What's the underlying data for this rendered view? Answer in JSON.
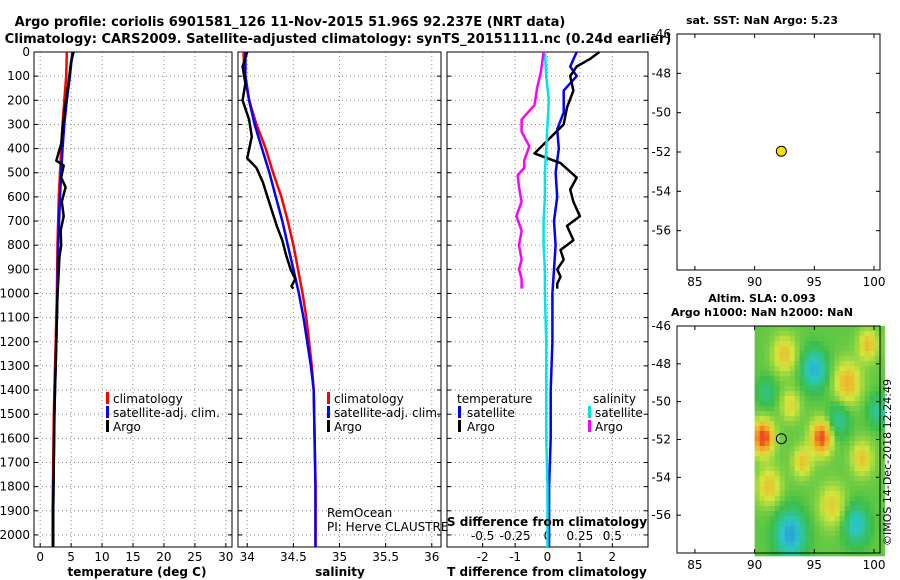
{
  "figure": {
    "title_line1": "Argo profile: coriolis 6901581_126 11-Nov-2015 51.96S 92.237E (NRT data)",
    "title_line2": "Climatology: CARS2009. Satellite-adjusted climatology: synTS_20151111.nc (0.24d earlier)",
    "side_label": "©IMOS 14-Dec-2018 12:24:49",
    "credit_line1": "RemOcean",
    "credit_line2": "PI: Herve CLAUSTRE"
  },
  "colors": {
    "climatology": "#ff0000",
    "satellite": "#0000ff",
    "argo": "#000000",
    "temp_sat_diff": "#0000ff",
    "temp_argo_diff": "#000000",
    "sal_sat_diff": "#00e5e5",
    "sal_argo_diff": "#ff00ff",
    "float_marker": "#ffdd00"
  },
  "chart_data": [
    {
      "type": "line",
      "id": "temperature",
      "title": "",
      "xlabel": "temperature (deg C)",
      "ylabel": "",
      "xlim": [
        -1,
        31
      ],
      "ylim": [
        2050,
        0
      ],
      "xticks": [
        "0",
        "5",
        "10",
        "15",
        "20",
        "25",
        "30"
      ],
      "xtick_values": [
        0,
        5,
        10,
        15,
        20,
        25,
        30
      ],
      "yticks": [
        "0",
        "100",
        "200",
        "300",
        "400",
        "500",
        "600",
        "700",
        "800",
        "900",
        "1000",
        "1100",
        "1200",
        "1300",
        "1400",
        "1500",
        "1600",
        "1700",
        "1800",
        "1900",
        "2000"
      ],
      "ytick_values": [
        0,
        100,
        200,
        300,
        400,
        500,
        600,
        700,
        800,
        900,
        1000,
        1100,
        1200,
        1300,
        1400,
        1500,
        1600,
        1700,
        1800,
        1900,
        2000
      ],
      "legend": [
        "climatology",
        "satellite-adj. clim.",
        "Argo"
      ],
      "series": [
        {
          "name": "climatology",
          "color_key": "climatology",
          "x": [
            4.3,
            4.2,
            3.9,
            3.6,
            3.4,
            3.2,
            3.0,
            2.8,
            2.7,
            2.6,
            2.5,
            2.4,
            2.3,
            2.2,
            2.1,
            2.0,
            2.0
          ],
          "y": [
            0,
            100,
            200,
            300,
            400,
            500,
            600,
            800,
            1000,
            1100,
            1200,
            1300,
            1400,
            1500,
            1700,
            1900,
            2050
          ]
        },
        {
          "name": "satellite-adj. clim.",
          "color_key": "satellite",
          "x": [
            5.2,
            4.8,
            4.3,
            3.9,
            3.6,
            3.4,
            3.2,
            2.9,
            2.8,
            2.7,
            2.6,
            2.5,
            2.4,
            2.3,
            2.2,
            2.1,
            2.1
          ],
          "y": [
            0,
            100,
            200,
            300,
            400,
            500,
            600,
            800,
            1000,
            1100,
            1200,
            1300,
            1400,
            1500,
            1700,
            1900,
            2050
          ]
        },
        {
          "name": "Argo",
          "color_key": "argo",
          "x": [
            5.4,
            5.0,
            4.7,
            4.4,
            4.0,
            3.7,
            3.4,
            2.6,
            3.8,
            3.4,
            4.1,
            3.5,
            3.8,
            3.3,
            3.4,
            3.1,
            3.0,
            2.9,
            2.8,
            2.7,
            2.6,
            2.5,
            2.4,
            2.3,
            2.2,
            2.1,
            2.1
          ],
          "y": [
            0,
            40,
            100,
            160,
            230,
            300,
            380,
            450,
            470,
            520,
            560,
            620,
            680,
            740,
            800,
            850,
            900,
            960,
            1000,
            1100,
            1200,
            1300,
            1400,
            1500,
            1700,
            1900,
            2050
          ]
        }
      ]
    },
    {
      "type": "line",
      "id": "salinity",
      "title": "",
      "xlabel": "salinity",
      "ylabel": "",
      "xlim": [
        33.9,
        36.1
      ],
      "ylim": [
        2050,
        0
      ],
      "xticks": [
        "34",
        "34.5",
        "35",
        "35.5",
        "36"
      ],
      "xtick_values": [
        34,
        34.5,
        35,
        35.5,
        36
      ],
      "legend": [
        "climatology",
        "satellite-adj. clim.",
        "Argo"
      ],
      "series": [
        {
          "name": "climatology",
          "color_key": "climatology",
          "x": [
            33.96,
            33.97,
            34.02,
            34.1,
            34.2,
            34.28,
            34.37,
            34.44,
            34.5,
            34.55,
            34.6,
            34.64,
            34.67,
            34.7,
            34.72,
            34.73,
            34.74,
            34.74
          ],
          "y": [
            0,
            100,
            200,
            300,
            400,
            500,
            600,
            700,
            800,
            900,
            1000,
            1100,
            1200,
            1300,
            1400,
            1600,
            1800,
            2050
          ]
        },
        {
          "name": "satellite-adj. clim.",
          "color_key": "satellite",
          "x": [
            33.98,
            33.98,
            34.02,
            34.08,
            34.16,
            34.24,
            34.31,
            34.38,
            34.44,
            34.5,
            34.56,
            34.61,
            34.65,
            34.69,
            34.72,
            34.73,
            34.74,
            34.74
          ],
          "y": [
            0,
            100,
            200,
            300,
            400,
            500,
            600,
            700,
            800,
            900,
            1000,
            1100,
            1200,
            1300,
            1400,
            1600,
            1800,
            2050
          ]
        },
        {
          "name": "Argo",
          "color_key": "argo",
          "x": [
            34.0,
            33.95,
            33.98,
            33.95,
            34.02,
            34.05,
            34.0,
            34.1,
            34.17,
            34.22,
            34.27,
            34.32,
            34.38,
            34.42,
            34.47,
            34.52,
            34.48,
            34.5
          ],
          "y": [
            0,
            60,
            130,
            200,
            280,
            350,
            440,
            480,
            540,
            600,
            660,
            720,
            780,
            840,
            900,
            940,
            970,
            980
          ]
        }
      ]
    },
    {
      "type": "line",
      "id": "differences",
      "title": "",
      "xlabel": "T difference from climatology",
      "xlabel_secondary": "S difference from climatology",
      "xlim": [
        -3.1,
        3.1
      ],
      "ylim": [
        2050,
        0
      ],
      "xticks": [
        "-2",
        "-1",
        "0",
        "1",
        "2"
      ],
      "xtick_values": [
        -2,
        -1,
        0,
        1,
        2
      ],
      "secondary_xticks": [
        "-0.5",
        "-0.25",
        "0",
        "0.25",
        "0.5"
      ],
      "secondary_xtick_values": [
        -0.5,
        -0.25,
        0,
        0.25,
        0.5
      ],
      "legend_left_heading": "temperature",
      "legend_right_heading": "salinity",
      "legend_left": [
        "satellite",
        "Argo"
      ],
      "legend_right": [
        "satellite",
        "Argo"
      ],
      "series": [
        {
          "name": "temperature satellite",
          "color_key": "temp_sat_diff",
          "axis": "T",
          "x": [
            0.9,
            0.7,
            0.9,
            0.5,
            0.5,
            0.3,
            0.35,
            0.25,
            0.3,
            0.2,
            0.25,
            0.2,
            0.15,
            0.15,
            0.1,
            0.1,
            0.05,
            0.05,
            0.05
          ],
          "y": [
            0,
            60,
            100,
            160,
            250,
            320,
            400,
            500,
            600,
            700,
            800,
            900,
            1000,
            1200,
            1400,
            1600,
            1800,
            1950,
            2050
          ]
        },
        {
          "name": "temperature Argo",
          "color_key": "temp_argo_diff",
          "axis": "T",
          "x": [
            1.6,
            1.3,
            0.9,
            0.7,
            0.8,
            0.6,
            0.5,
            -0.4,
            0.4,
            0.9,
            0.7,
            0.8,
            1.0,
            0.6,
            0.8,
            0.4,
            0.5,
            0.3,
            0.4,
            0.3,
            0.3
          ],
          "y": [
            0,
            30,
            60,
            100,
            160,
            230,
            300,
            420,
            460,
            520,
            570,
            620,
            680,
            720,
            780,
            820,
            860,
            900,
            930,
            960,
            980
          ]
        },
        {
          "name": "salinity satellite",
          "color_key": "sal_sat_diff",
          "axis": "S",
          "x": [
            -0.02,
            -0.01,
            0.01,
            0.0,
            -0.01,
            -0.02,
            -0.02,
            -0.03,
            -0.03,
            -0.02,
            -0.02,
            -0.01,
            -0.01,
            -0.01,
            0.0,
            0.0
          ],
          "y": [
            0,
            100,
            200,
            300,
            400,
            500,
            600,
            700,
            800,
            900,
            1000,
            1200,
            1400,
            1600,
            1800,
            2050
          ]
        },
        {
          "name": "salinity Argo",
          "color_key": "sal_argo_diff",
          "axis": "S",
          "x": [
            -0.03,
            -0.05,
            -0.08,
            -0.1,
            -0.2,
            -0.2,
            -0.14,
            -0.18,
            -0.18,
            -0.23,
            -0.22,
            -0.2,
            -0.24,
            -0.2,
            -0.22,
            -0.2,
            -0.22,
            -0.2,
            -0.2
          ],
          "y": [
            0,
            80,
            150,
            220,
            280,
            330,
            390,
            450,
            480,
            510,
            560,
            620,
            680,
            740,
            800,
            860,
            900,
            940,
            980
          ]
        }
      ]
    },
    {
      "type": "scatter",
      "id": "sst-map",
      "title": "sat. SST: NaN Argo: 5.23",
      "xlim": [
        83.5,
        100.5
      ],
      "ylim": [
        -58,
        -46
      ],
      "xticks": [
        "85",
        "90",
        "95",
        "100"
      ],
      "xtick_values": [
        85,
        90,
        95,
        100
      ],
      "yticks": [
        "-46",
        "-48",
        "-50",
        "-52",
        "-54",
        "-56"
      ],
      "ytick_values": [
        -46,
        -48,
        -50,
        -52,
        -54,
        -56
      ],
      "points": [
        {
          "x": 92.237,
          "y": -51.96
        }
      ]
    },
    {
      "type": "heatmap",
      "id": "sla-map",
      "title_line1": "Altim. SLA: 0.093",
      "title_line2": "Argo h1000: NaN h2000: NaN",
      "xlim": [
        83.5,
        100.5
      ],
      "ylim": [
        -58,
        -46
      ],
      "xticks": [
        "85",
        "90",
        "95",
        "100"
      ],
      "xtick_values": [
        85,
        90,
        95,
        100
      ],
      "yticks": [
        "-46",
        "-48",
        "-50",
        "-52",
        "-54",
        "-56"
      ],
      "ytick_values": [
        -46,
        -48,
        -50,
        -52,
        -54,
        -56
      ],
      "data_lon_range": [
        90,
        100.5
      ],
      "points": [
        {
          "x": 92.237,
          "y": -51.96
        }
      ],
      "blobs": [
        {
          "lon": 90.7,
          "lat": -51.9,
          "v": 1.0,
          "r": 0.9
        },
        {
          "lon": 95.6,
          "lat": -51.9,
          "v": 0.95,
          "r": 0.9
        },
        {
          "lon": 97.8,
          "lat": -49.0,
          "v": 0.6,
          "r": 1.1
        },
        {
          "lon": 92.5,
          "lat": -47.5,
          "v": 0.5,
          "r": 1.0
        },
        {
          "lon": 99.5,
          "lat": -47.0,
          "v": 0.55,
          "r": 0.8
        },
        {
          "lon": 91.2,
          "lat": -54.5,
          "v": 0.5,
          "r": 1.0
        },
        {
          "lon": 96.5,
          "lat": -55.5,
          "v": 0.45,
          "r": 1.1
        },
        {
          "lon": 99.0,
          "lat": -53.0,
          "v": 0.5,
          "r": 0.9
        },
        {
          "lon": 93.0,
          "lat": -50.2,
          "v": 0.4,
          "r": 0.8
        },
        {
          "lon": 94.0,
          "lat": -53.2,
          "v": 0.5,
          "r": 0.8
        },
        {
          "lon": 95.0,
          "lat": -48.3,
          "v": -0.7,
          "r": 1.0
        },
        {
          "lon": 93.0,
          "lat": -57.0,
          "v": -0.8,
          "r": 1.2
        },
        {
          "lon": 98.5,
          "lat": -56.5,
          "v": -0.6,
          "r": 1.0
        },
        {
          "lon": 91.0,
          "lat": -49.5,
          "v": -0.3,
          "r": 0.8
        },
        {
          "lon": 97.0,
          "lat": -51.0,
          "v": -0.4,
          "r": 0.9
        },
        {
          "lon": 100.3,
          "lat": -50.5,
          "v": -0.4,
          "r": 0.8
        }
      ]
    }
  ]
}
